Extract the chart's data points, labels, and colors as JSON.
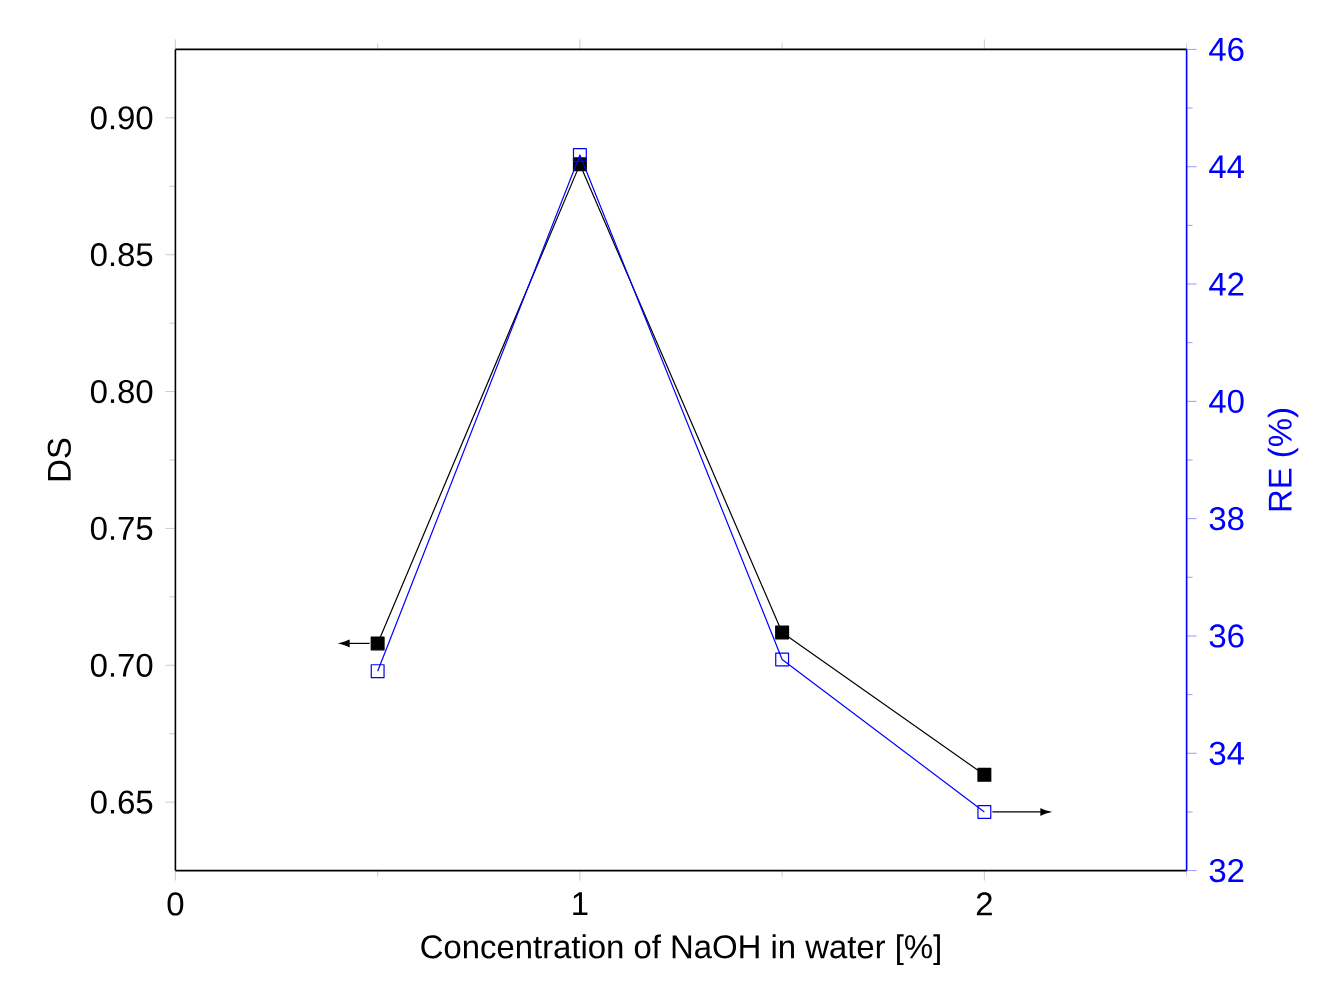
{
  "chart_data": {
    "type": "line",
    "xlabel": "Concentration of NaOH in water [%]",
    "ylabel": "DS",
    "y2label": "RE (%)",
    "x": [
      0.5,
      1,
      1.5,
      2
    ],
    "series": [
      {
        "name": null,
        "color": "#000000",
        "values": [
          0.708,
          0.883,
          0.712,
          0.66
        ]
      },
      {
        "name": null,
        "color": "#0000ff",
        "axis": "y2",
        "values": [
          35.4,
          44.2,
          35.6,
          33.0
        ]
      }
    ],
    "marker": "square",
    "line_style": "solid",
    "xlim": [
      0,
      2.5
    ],
    "xticks": [
      0,
      1,
      2,
      {
        "value": 0.5,
        "label": null
      },
      {
        "value": 1.5,
        "label": null
      },
      {
        "value": 2.5,
        "label": null
      }
    ],
    "ylim": [
      0.625,
      0.925
    ],
    "yticks": [
      {
        "value": 0.65,
        "label": "0.65"
      },
      {
        "value": 0.7,
        "label": "0.70"
      },
      {
        "value": 0.75,
        "label": "0.75"
      },
      {
        "value": 0.8,
        "label": "0.80"
      },
      {
        "value": 0.85,
        "label": "0.85"
      },
      {
        "value": 0.9,
        "label": "0.90"
      },
      {
        "value": 0.675,
        "label": null
      },
      {
        "value": 0.725,
        "label": null
      },
      {
        "value": 0.775,
        "label": null
      },
      {
        "value": 0.825,
        "label": null
      },
      {
        "value": 0.875,
        "label": null
      }
    ],
    "y2lim": [
      32,
      46
    ],
    "y2ticks": [
      32,
      34,
      36,
      38,
      40,
      42,
      44,
      46,
      {
        "value": 33,
        "label": null
      },
      {
        "value": 35,
        "label": null
      },
      {
        "value": 37,
        "label": null
      },
      {
        "value": 39,
        "label": null
      },
      {
        "value": 41,
        "label": null
      },
      {
        "value": 43,
        "label": null
      },
      {
        "value": 45,
        "label": null
      }
    ]
  }
}
